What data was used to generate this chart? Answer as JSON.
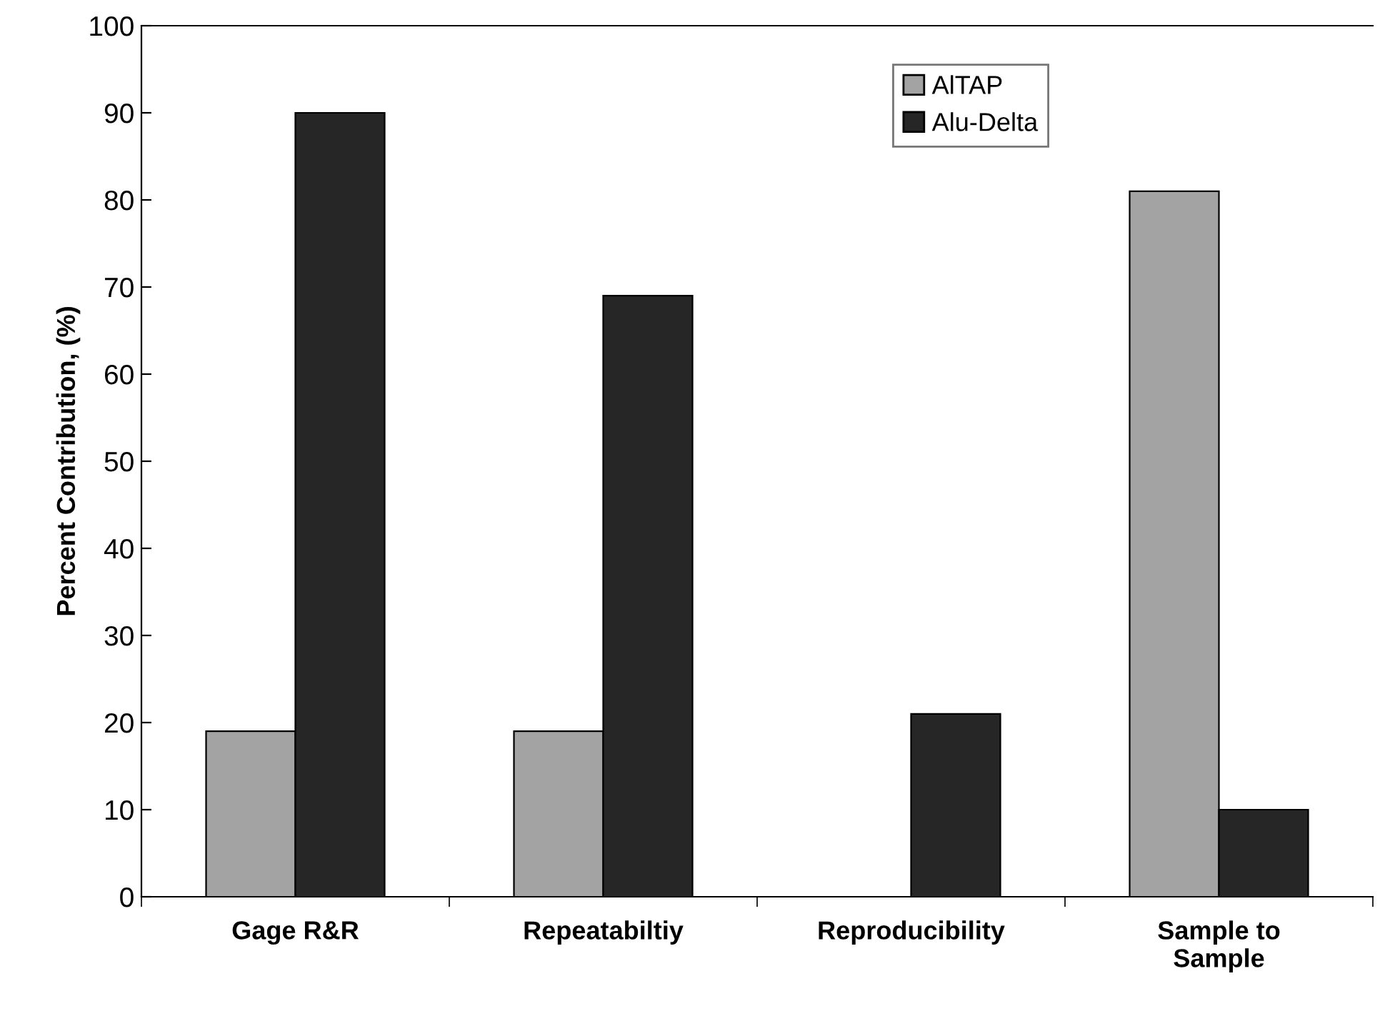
{
  "chart_data": {
    "type": "bar",
    "ylabel": "Percent Contribution, (%)",
    "categories": [
      "Gage R&R",
      "Repeatabiltiy",
      "Reproducibility",
      "Sample to\nSample"
    ],
    "series": [
      {
        "name": "AlTAP",
        "color": "#a3a3a3",
        "values": [
          19,
          19,
          null,
          81
        ]
      },
      {
        "name": "Alu-Delta",
        "color": "#262626",
        "values": [
          90,
          69,
          21,
          10
        ]
      }
    ],
    "ylim": [
      0,
      100
    ],
    "yticks": [
      0,
      10,
      20,
      30,
      40,
      50,
      60,
      70,
      80,
      90,
      100
    ],
    "grid": false,
    "legend": "top right"
  }
}
